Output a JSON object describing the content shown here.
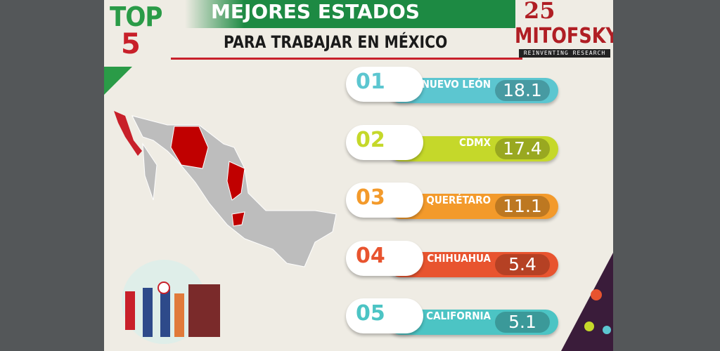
{
  "header": {
    "badge_top": "TOP",
    "badge_number": "5",
    "title": "MEJORES ESTADOS",
    "subtitle": "PARA TRABAJAR EN MÉXICO"
  },
  "logo": {
    "anniversary": "25",
    "brand": "MITOFSKY",
    "tagline": "REINVENTING RESEARCH"
  },
  "ranking": [
    {
      "rank": "01",
      "state": "NUEVO LEÓN",
      "value": 18.1,
      "color": "#5cc6d0"
    },
    {
      "rank": "02",
      "state": "CDMX",
      "value": 17.4,
      "color": "#c5d82a"
    },
    {
      "rank": "03",
      "state": "QUERÉTARO",
      "value": 11.1,
      "color": "#f39a2b"
    },
    {
      "rank": "04",
      "state": "CHIHUAHUA",
      "value": 5.4,
      "color": "#e8542f"
    },
    {
      "rank": "05",
      "state": "BAJA CALIFORNIA",
      "value": 5.1,
      "color": "#4cc4c4"
    }
  ]
}
